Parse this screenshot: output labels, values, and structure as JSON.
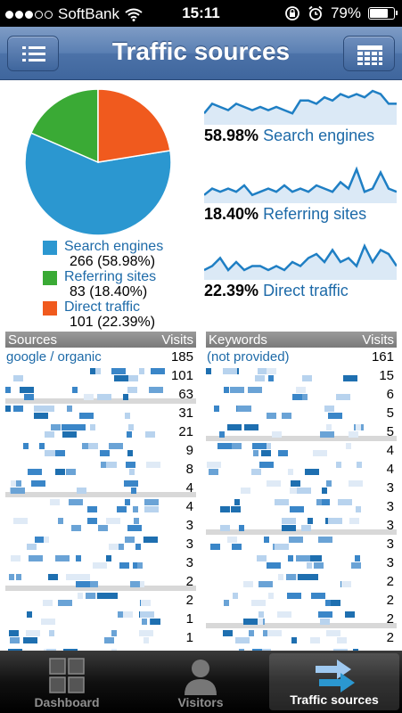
{
  "status": {
    "carrier": "SoftBank",
    "time": "15:11",
    "battery": "79%",
    "battery_level": 0.79
  },
  "nav": {
    "title": "Traffic sources",
    "left_icon": "list-icon",
    "right_icon": "grid-icon"
  },
  "pie": {
    "slices": [
      {
        "name": "Search engines",
        "value": 58.98,
        "color": "#2b97d0"
      },
      {
        "name": "Referring sites",
        "value": 18.4,
        "color": "#3aaa35"
      },
      {
        "name": "Direct traffic",
        "value": 22.39,
        "color": "#f05a1e"
      }
    ],
    "legend": [
      {
        "name": "Search engines",
        "detail": "266 (58.98%)"
      },
      {
        "name": "Referring sites",
        "detail": "83 (18.40%)"
      },
      {
        "name": "Direct traffic",
        "detail": "101 (22.39%)"
      }
    ]
  },
  "sparklines": [
    {
      "pct": "58.98%",
      "label": "Search engines",
      "values": [
        3,
        6,
        5,
        4,
        6,
        5,
        4,
        5,
        4,
        5,
        4,
        3,
        7,
        7,
        6,
        8,
        7,
        9,
        8,
        9,
        8,
        10,
        9,
        6,
        6
      ]
    },
    {
      "pct": "18.40%",
      "label": "Referring sites",
      "values": [
        2,
        4,
        3,
        4,
        3,
        5,
        2,
        3,
        4,
        3,
        5,
        3,
        4,
        3,
        5,
        4,
        3,
        6,
        4,
        10,
        3,
        4,
        9,
        4,
        3
      ]
    },
    {
      "pct": "22.39%",
      "label": "Direct traffic",
      "values": [
        2,
        3,
        5,
        2,
        4,
        2,
        3,
        3,
        2,
        3,
        2,
        4,
        3,
        5,
        6,
        4,
        7,
        4,
        5,
        3,
        8,
        4,
        7,
        6,
        3
      ]
    }
  ],
  "sources": {
    "header": {
      "left": "Sources",
      "right": "Visits"
    },
    "first": {
      "name": "google / organic",
      "visits": "185"
    },
    "visits": [
      "101",
      "63",
      "31",
      "21",
      "9",
      "8",
      "4",
      "4",
      "3",
      "3",
      "3",
      "2",
      "2",
      "1",
      "1",
      "1"
    ]
  },
  "keywords": {
    "header": {
      "left": "Keywords",
      "right": "Visits"
    },
    "first": {
      "name": "(not provided)",
      "visits": "161"
    },
    "visits": [
      "15",
      "6",
      "5",
      "5",
      "4",
      "4",
      "3",
      "3",
      "3",
      "3",
      "3",
      "2",
      "2",
      "2",
      "2",
      "1"
    ]
  },
  "tabs": [
    {
      "label": "Dashboard",
      "icon": "dashboard-icon"
    },
    {
      "label": "Visitors",
      "icon": "visitors-icon"
    },
    {
      "label": "Traffic sources",
      "icon": "traffic-sources-icon"
    }
  ]
}
